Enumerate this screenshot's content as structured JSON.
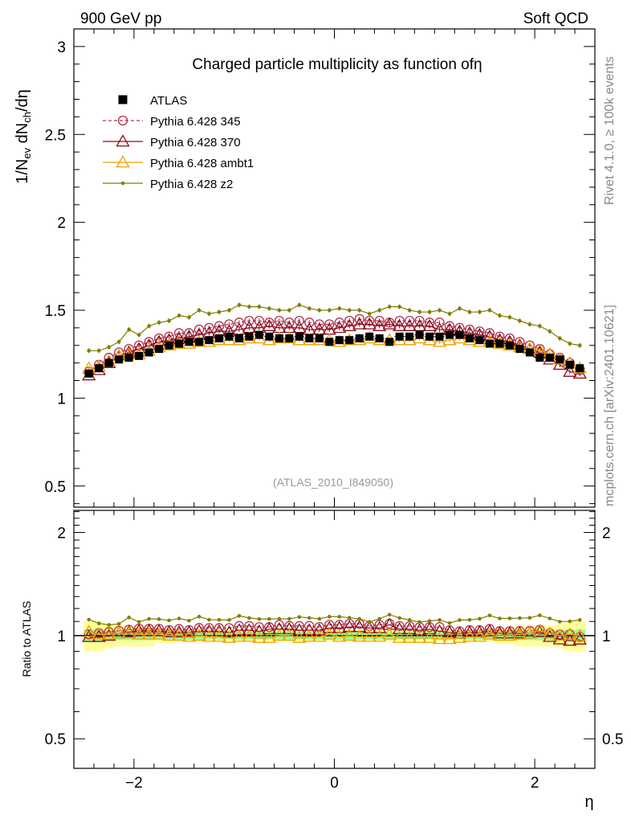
{
  "header": {
    "left": "900 GeV pp",
    "right": "Soft QCD"
  },
  "side": {
    "top": "Rivet 4.1.0, ≥ 100k events",
    "bottom": "mcplots.cern.ch [arXiv:2401.10621]"
  },
  "chart_data": {
    "type": "scatter",
    "title": "Charged particle multiplicity as function ofη",
    "xlabel": "η",
    "ylabel": "1/N_ev dN_ch/dη",
    "ratio_ylabel": "Ratio to ATLAS",
    "watermark": "(ATLAS_2010_I849050)",
    "xlim": [
      -2.6,
      2.6
    ],
    "ylim": [
      0.38,
      3.1
    ],
    "ratio_ylim": [
      0.41,
      2.32
    ],
    "xticks": [
      {
        "v": -2,
        "label": "−2"
      },
      {
        "v": 0,
        "label": "0"
      },
      {
        "v": 2,
        "label": "2"
      }
    ],
    "yticks": [
      {
        "v": 0.5,
        "label": "0.5"
      },
      {
        "v": 1,
        "label": "1"
      },
      {
        "v": 1.5,
        "label": "1.5"
      },
      {
        "v": 2,
        "label": "2"
      },
      {
        "v": 2.5,
        "label": "2.5"
      },
      {
        "v": 3,
        "label": "3"
      }
    ],
    "ratio_yticks": [
      {
        "v": 0.5,
        "label": "0.5"
      },
      {
        "v": 1,
        "label": "1"
      },
      {
        "v": 2,
        "label": "2"
      }
    ],
    "x": [
      -2.45,
      -2.35,
      -2.25,
      -2.15,
      -2.05,
      -1.95,
      -1.85,
      -1.75,
      -1.65,
      -1.55,
      -1.45,
      -1.35,
      -1.25,
      -1.15,
      -1.05,
      -0.95,
      -0.85,
      -0.75,
      -0.65,
      -0.55,
      -0.45,
      -0.35,
      -0.25,
      -0.15,
      -0.05,
      0.05,
      0.15,
      0.25,
      0.35,
      0.45,
      0.55,
      0.65,
      0.75,
      0.85,
      0.95,
      1.05,
      1.15,
      1.25,
      1.35,
      1.45,
      1.55,
      1.65,
      1.75,
      1.85,
      1.95,
      2.05,
      2.15,
      2.25,
      2.35,
      2.45
    ],
    "data": {
      "name": "ATLAS",
      "values": [
        1.14,
        1.17,
        1.2,
        1.22,
        1.23,
        1.24,
        1.26,
        1.28,
        1.3,
        1.31,
        1.32,
        1.32,
        1.33,
        1.34,
        1.35,
        1.34,
        1.35,
        1.36,
        1.35,
        1.34,
        1.34,
        1.35,
        1.34,
        1.34,
        1.32,
        1.33,
        1.33,
        1.34,
        1.35,
        1.34,
        1.32,
        1.35,
        1.35,
        1.36,
        1.35,
        1.35,
        1.36,
        1.36,
        1.34,
        1.33,
        1.31,
        1.31,
        1.3,
        1.28,
        1.26,
        1.23,
        1.23,
        1.22,
        1.19,
        1.17
      ],
      "band_green": [
        0.04,
        0.04,
        0.035,
        0.03,
        0.03,
        0.03,
        0.03,
        0.025,
        0.025,
        0.025,
        0.025,
        0.025,
        0.025,
        0.025,
        0.025,
        0.025,
        0.025,
        0.025,
        0.025,
        0.025,
        0.025,
        0.025,
        0.025,
        0.025,
        0.025,
        0.025,
        0.025,
        0.025,
        0.025,
        0.025,
        0.025,
        0.025,
        0.025,
        0.025,
        0.025,
        0.025,
        0.025,
        0.025,
        0.025,
        0.025,
        0.025,
        0.025,
        0.025,
        0.025,
        0.03,
        0.03,
        0.03,
        0.035,
        0.04,
        0.04
      ],
      "band_yellow": [
        0.1,
        0.1,
        0.08,
        0.07,
        0.07,
        0.07,
        0.07,
        0.05,
        0.05,
        0.04,
        0.04,
        0.04,
        0.04,
        0.04,
        0.04,
        0.04,
        0.04,
        0.04,
        0.04,
        0.04,
        0.04,
        0.04,
        0.04,
        0.04,
        0.04,
        0.04,
        0.04,
        0.04,
        0.04,
        0.04,
        0.04,
        0.04,
        0.04,
        0.04,
        0.04,
        0.04,
        0.04,
        0.04,
        0.04,
        0.04,
        0.04,
        0.05,
        0.05,
        0.07,
        0.07,
        0.07,
        0.07,
        0.08,
        0.1,
        0.1
      ]
    },
    "series": [
      {
        "name": "Pythia 6.428 345",
        "color": "#b03050",
        "marker": "circle",
        "dashed": true,
        "values": [
          1.15,
          1.19,
          1.23,
          1.26,
          1.28,
          1.3,
          1.32,
          1.34,
          1.35,
          1.37,
          1.37,
          1.39,
          1.4,
          1.41,
          1.42,
          1.43,
          1.44,
          1.44,
          1.43,
          1.44,
          1.43,
          1.44,
          1.43,
          1.42,
          1.42,
          1.43,
          1.44,
          1.45,
          1.44,
          1.44,
          1.43,
          1.44,
          1.44,
          1.44,
          1.43,
          1.43,
          1.41,
          1.4,
          1.39,
          1.38,
          1.37,
          1.35,
          1.34,
          1.32,
          1.3,
          1.28,
          1.25,
          1.23,
          1.2,
          1.16
        ]
      },
      {
        "name": "Pythia 6.428 370",
        "color": "#8b0a1a",
        "marker": "triangle",
        "dashed": false,
        "values": [
          1.13,
          1.16,
          1.2,
          1.24,
          1.26,
          1.28,
          1.3,
          1.32,
          1.33,
          1.34,
          1.35,
          1.36,
          1.37,
          1.38,
          1.38,
          1.39,
          1.4,
          1.4,
          1.41,
          1.4,
          1.4,
          1.4,
          1.39,
          1.39,
          1.39,
          1.4,
          1.41,
          1.42,
          1.42,
          1.41,
          1.42,
          1.41,
          1.41,
          1.41,
          1.41,
          1.39,
          1.39,
          1.38,
          1.37,
          1.36,
          1.35,
          1.33,
          1.32,
          1.3,
          1.28,
          1.26,
          1.22,
          1.19,
          1.15,
          1.14
        ]
      },
      {
        "name": "Pythia 6.428 ambt1",
        "color": "#f0a000",
        "marker": "triangle",
        "dashed": false,
        "values": [
          1.17,
          1.18,
          1.21,
          1.24,
          1.25,
          1.25,
          1.27,
          1.29,
          1.3,
          1.31,
          1.31,
          1.32,
          1.32,
          1.33,
          1.33,
          1.33,
          1.34,
          1.34,
          1.33,
          1.34,
          1.34,
          1.33,
          1.33,
          1.33,
          1.33,
          1.32,
          1.33,
          1.33,
          1.34,
          1.33,
          1.33,
          1.33,
          1.33,
          1.34,
          1.33,
          1.32,
          1.33,
          1.34,
          1.33,
          1.32,
          1.32,
          1.31,
          1.3,
          1.29,
          1.28,
          1.27,
          1.25,
          1.22,
          1.2,
          1.17
        ]
      },
      {
        "name": "Pythia 6.428 z2",
        "color": "#7f7f00",
        "marker": "dot",
        "dashed": false,
        "values": [
          1.27,
          1.27,
          1.29,
          1.32,
          1.39,
          1.36,
          1.41,
          1.43,
          1.44,
          1.47,
          1.46,
          1.5,
          1.48,
          1.49,
          1.5,
          1.53,
          1.52,
          1.52,
          1.51,
          1.5,
          1.5,
          1.53,
          1.51,
          1.5,
          1.5,
          1.51,
          1.5,
          1.5,
          1.48,
          1.5,
          1.52,
          1.52,
          1.5,
          1.49,
          1.49,
          1.5,
          1.48,
          1.51,
          1.49,
          1.49,
          1.5,
          1.47,
          1.46,
          1.44,
          1.42,
          1.41,
          1.38,
          1.34,
          1.31,
          1.3
        ]
      }
    ]
  }
}
